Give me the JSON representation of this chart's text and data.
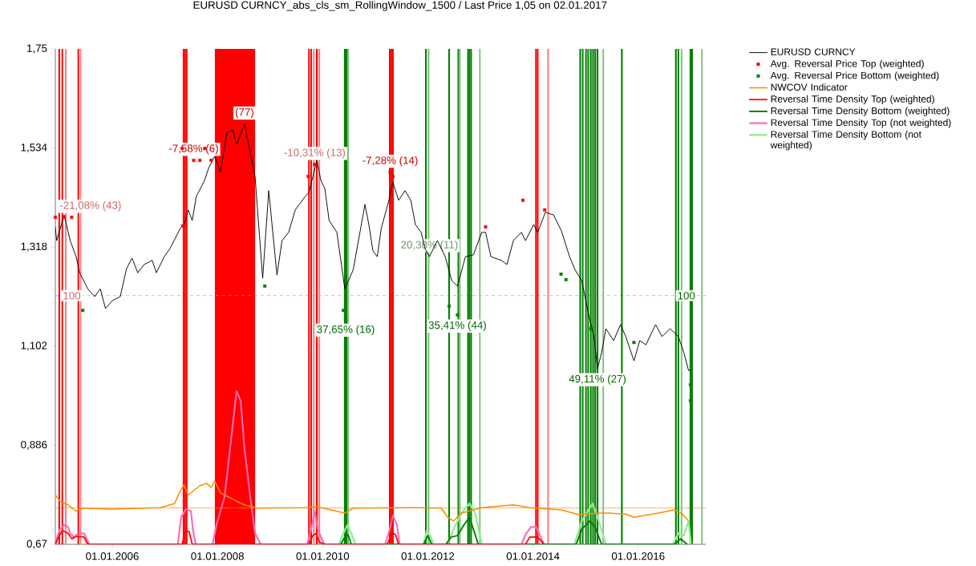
{
  "chart_data": {
    "type": "line",
    "title": "EURUSD  CURNCY_abs_cls_sm_RollingWindow_1500 / Last Price 1,05 on 02.01.2017",
    "xlim": [
      "2004-12-01",
      "2017-04-15"
    ],
    "xticks": [
      {
        "value": "2006-01-01",
        "label": "01.01.2006"
      },
      {
        "value": "2008-01-01",
        "label": "01.01.2008"
      },
      {
        "value": "2010-01-01",
        "label": "01.01.2010"
      },
      {
        "value": "2012-01-01",
        "label": "01.01.2012"
      },
      {
        "value": "2014-01-01",
        "label": "01.01.2014"
      },
      {
        "value": "2016-01-01",
        "label": "01.01.2016"
      }
    ],
    "ylim": [
      0.67,
      1.75
    ],
    "yticks": [
      {
        "value": 0.67,
        "label": "0,67"
      },
      {
        "value": 0.886,
        "label": "0,886"
      },
      {
        "value": 1.102,
        "label": "1,102"
      },
      {
        "value": 1.318,
        "label": "1,318"
      },
      {
        "value": 1.534,
        "label": "1,534"
      },
      {
        "value": 1.75,
        "label": "1,75"
      }
    ],
    "legend": "right",
    "series": [
      {
        "name": "EURUSD CURNCY",
        "color": "#000000",
        "x": [
          "2004-12-01",
          "2004-12-10",
          "2005-02-01",
          "2005-03-15",
          "2005-04-25",
          "2005-05-20",
          "2005-07-15",
          "2005-09-01",
          "2005-10-10",
          "2005-11-15",
          "2006-01-01",
          "2006-02-25",
          "2006-04-10",
          "2006-05-18",
          "2006-06-27",
          "2006-08-10",
          "2006-10-05",
          "2006-11-03",
          "2006-12-28",
          "2007-02-06",
          "2007-04-18",
          "2007-05-15",
          "2007-06-12",
          "2007-07-10",
          "2007-08-07",
          "2007-10-03",
          "2007-11-01",
          "2007-12-13",
          "2008-01-22",
          "2008-03-07",
          "2008-04-16",
          "2008-05-13",
          "2008-07-07",
          "2008-09-18",
          "2008-11-10",
          "2008-12-22",
          "2009-02-18",
          "2009-03-25",
          "2009-05-10",
          "2009-06-25",
          "2009-09-01",
          "2009-09-28",
          "2009-11-22",
          "2009-12-20",
          "2010-01-16",
          "2010-02-15",
          "2010-04-10",
          "2010-06-04",
          "2010-08-01",
          "2010-10-22",
          "2010-11-18",
          "2010-12-16",
          "2011-01-15",
          "2011-02-12",
          "2011-04-06",
          "2011-05-03",
          "2011-06-12",
          "2011-07-27",
          "2011-09-05",
          "2011-10-07",
          "2011-11-16",
          "2011-12-13",
          "2012-01-12",
          "2012-03-07",
          "2012-05-01",
          "2012-06-15",
          "2012-07-25",
          "2012-09-18",
          "2012-11-13",
          "2013-01-10",
          "2013-02-06",
          "2013-03-15",
          "2013-05-27",
          "2013-07-04",
          "2013-08-18",
          "2013-10-13",
          "2013-11-10",
          "2014-01-06",
          "2014-02-03",
          "2014-03-28",
          "2014-05-24",
          "2014-07-18",
          "2014-09-12",
          "2014-10-21",
          "2014-12-06",
          "2015-01-19",
          "2015-02-28",
          "2015-03-25",
          "2015-04-22",
          "2015-05-22",
          "2015-07-15",
          "2015-08-31",
          "2015-10-07",
          "2015-12-03",
          "2016-01-12",
          "2016-02-24",
          "2016-05-01",
          "2016-06-15",
          "2016-08-10",
          "2016-10-06",
          "2016-11-13",
          "2016-12-16",
          "2017-01-02"
        ],
        "values": [
          1.362,
          1.332,
          1.388,
          1.332,
          1.297,
          1.262,
          1.227,
          1.21,
          1.227,
          1.184,
          1.201,
          1.21,
          1.271,
          1.294,
          1.262,
          1.28,
          1.289,
          1.262,
          1.297,
          1.315,
          1.359,
          1.367,
          1.399,
          1.376,
          1.428,
          1.463,
          1.49,
          1.516,
          1.481,
          1.568,
          1.573,
          1.542,
          1.586,
          1.472,
          1.25,
          1.441,
          1.257,
          1.332,
          1.35,
          1.399,
          1.428,
          1.437,
          1.507,
          1.463,
          1.446,
          1.376,
          1.35,
          1.227,
          1.268,
          1.411,
          1.367,
          1.31,
          1.297,
          1.359,
          1.42,
          1.46,
          1.42,
          1.441,
          1.42,
          1.367,
          1.35,
          1.315,
          1.297,
          1.332,
          1.297,
          1.245,
          1.233,
          1.297,
          1.301,
          1.35,
          1.35,
          1.297,
          1.289,
          1.28,
          1.332,
          1.35,
          1.332,
          1.367,
          1.35,
          1.394,
          1.388,
          1.353,
          1.297,
          1.268,
          1.245,
          1.175,
          1.123,
          1.053,
          1.088,
          1.14,
          1.114,
          1.149,
          1.123,
          1.07,
          1.114,
          1.105,
          1.149,
          1.123,
          1.14,
          1.123,
          1.088,
          1.049,
          1.05
        ]
      },
      {
        "name": "Avg. Reversal Price Top (weighted)",
        "type": "scatter",
        "marker": "square",
        "color": "#ff0000",
        "x": [
          "2004-12-01",
          "2005-02-01",
          "2005-03-25",
          "2007-05-05",
          "2007-05-01",
          "2007-07-20",
          "2007-09-01",
          "2007-10-05",
          "2007-11-18",
          "2009-09-23",
          "2009-11-07",
          "2011-04-15",
          "2011-05-04",
          "2013-02-06",
          "2013-10-23",
          "2014-03-23"
        ],
        "values": [
          1.383,
          1.383,
          1.383,
          1.364,
          1.533,
          1.507,
          1.507,
          1.533,
          1.507,
          1.472,
          1.498,
          1.481,
          1.472,
          1.362,
          1.42,
          1.399
        ]
      },
      {
        "name": "Avg. Reversal Price Bottom (weighted)",
        "type": "scatter",
        "marker": "square",
        "color": "#008000",
        "x": [
          "2005-06-10",
          "2008-11-25",
          "2010-05-25",
          "2010-06-10",
          "2012-05-28",
          "2012-07-25",
          "2014-07-15",
          "2014-08-18",
          "2015-02-06",
          "2015-12-03",
          "2016-12-29",
          "2016-12-29"
        ],
        "values": [
          1.18,
          1.233,
          1.18,
          1.161,
          1.189,
          1.17,
          1.259,
          1.247,
          1.14,
          1.11,
          1.018,
          0.983
        ]
      },
      {
        "name": "NWCOV Indicator",
        "color": "#ff8c00",
        "x": [
          "2004-12-01",
          "2005-01-03",
          "2005-02-28",
          "2005-04-25",
          "2005-05-20",
          "2006-01-01",
          "2006-12-01",
          "2007-03-10",
          "2007-04-18",
          "2007-05-15",
          "2007-06-12",
          "2007-07-20",
          "2007-09-01",
          "2007-10-19",
          "2007-11-18",
          "2007-12-13",
          "2008-01-22",
          "2008-03-19",
          "2008-05-13",
          "2008-07-07",
          "2008-10-01",
          "2009-09-01",
          "2009-11-22",
          "2010-06-04",
          "2010-08-01",
          "2011-10-19",
          "2012-04-03",
          "2012-05-18",
          "2012-06-28",
          "2012-08-22",
          "2013-01-10",
          "2013-08-18",
          "2013-12-10",
          "2014-07-18",
          "2014-11-09",
          "2015-03-25",
          "2015-06-18",
          "2015-10-07",
          "2015-12-03",
          "2016-05-19",
          "2016-09-07",
          "2016-11-03",
          "2016-12-16"
        ],
        "values": [
          0.778,
          0.764,
          0.756,
          0.742,
          0.749,
          0.747,
          0.75,
          0.759,
          0.787,
          0.799,
          0.777,
          0.787,
          0.798,
          0.803,
          0.794,
          0.808,
          0.782,
          0.773,
          0.764,
          0.756,
          0.749,
          0.75,
          0.752,
          0.738,
          0.749,
          0.75,
          0.749,
          0.729,
          0.721,
          0.738,
          0.75,
          0.756,
          0.75,
          0.745,
          0.735,
          0.738,
          0.738,
          0.736,
          0.729,
          0.738,
          0.745,
          0.736,
          0.721
        ]
      },
      {
        "name": "Reversal Time Density Top (weighted)",
        "color": "#ff0000",
        "x": [
          "2004-12-01",
          "2004-12-17",
          "2005-01-19",
          "2005-02-28",
          "2005-03-26",
          "2005-04-25",
          "2005-06-19",
          "2005-07-15",
          "2007-05-01",
          "2007-05-21",
          "2007-06-18",
          "2007-07-10",
          "2009-09-28",
          "2009-10-25",
          "2009-11-16",
          "2009-12-09",
          "2010-01-13",
          "2011-03-25",
          "2011-04-28",
          "2011-05-22",
          "2011-06-12",
          "2013-11-10",
          "2013-12-10",
          "2014-02-03",
          "2014-03-19"
        ],
        "values": [
          0.67,
          0.682,
          0.7,
          0.694,
          0.682,
          0.687,
          0.686,
          0.67,
          0.67,
          0.698,
          0.698,
          0.67,
          0.67,
          0.689,
          0.694,
          0.675,
          0.67,
          0.67,
          0.696,
          0.691,
          0.67,
          0.67,
          0.686,
          0.686,
          0.67
        ]
      },
      {
        "name": "Reversal Time Density Bottom (weighted)",
        "color": "#008000",
        "x": [
          "2010-05-07",
          "2010-06-04",
          "2010-06-27",
          "2010-07-19",
          "2011-12-03",
          "2012-01-01",
          "2012-01-28",
          "2012-05-06",
          "2012-06-10",
          "2012-07-25",
          "2012-09-07",
          "2012-10-16",
          "2012-11-13",
          "2012-12-16",
          "2014-10-28",
          "2014-12-06",
          "2015-01-31",
          "2015-03-09",
          "2015-04-22",
          "2016-09-07",
          "2016-10-22",
          "2016-12-07"
        ],
        "values": [
          0.67,
          0.686,
          0.691,
          0.67,
          0.67,
          0.689,
          0.67,
          0.67,
          0.686,
          0.689,
          0.712,
          0.729,
          0.703,
          0.67,
          0.67,
          0.703,
          0.721,
          0.707,
          0.67,
          0.67,
          0.682,
          0.67
        ]
      },
      {
        "name": "Reversal Time Density Top (not weighted)",
        "color": "#ff69b4",
        "x": [
          "2004-12-01",
          "2004-12-17",
          "2005-01-03",
          "2005-02-01",
          "2005-02-28",
          "2005-03-15",
          "2005-04-07",
          "2005-05-10",
          "2005-06-19",
          "2005-07-15",
          "2005-07-27",
          "2007-04-01",
          "2007-04-24",
          "2007-05-27",
          "2007-07-01",
          "2007-07-16",
          "2007-08-03",
          "2007-11-28",
          "2007-12-25",
          "2008-02-19",
          "2008-04-16",
          "2008-05-13",
          "2008-06-10",
          "2008-07-07",
          "2008-08-16",
          "2008-09-18",
          "2008-10-28",
          "2009-09-16",
          "2009-10-13",
          "2009-11-07",
          "2009-11-28",
          "2010-01-01",
          "2010-01-16",
          "2011-03-10",
          "2011-04-12",
          "2011-05-04",
          "2011-06-01",
          "2011-06-19",
          "2013-10-13",
          "2013-11-10",
          "2013-12-19",
          "2014-01-22",
          "2014-02-19",
          "2014-03-19"
        ],
        "values": [
          0.67,
          0.689,
          0.703,
          0.712,
          0.708,
          0.694,
          0.686,
          0.694,
          0.694,
          0.677,
          0.67,
          0.67,
          0.729,
          0.747,
          0.742,
          0.7,
          0.67,
          0.67,
          0.712,
          0.773,
          0.93,
          1.004,
          0.983,
          0.878,
          0.773,
          0.694,
          0.67,
          0.67,
          0.703,
          0.743,
          0.703,
          0.677,
          0.67,
          0.67,
          0.703,
          0.733,
          0.712,
          0.67,
          0.67,
          0.691,
          0.708,
          0.708,
          0.689,
          0.67
        ]
      },
      {
        "name": "Reversal Time Density Bottom (not weighted)",
        "color": "#90ee90",
        "x": [
          "2010-04-25",
          "2010-05-25",
          "2010-06-22",
          "2010-07-19",
          "2010-08-16",
          "2011-12-03",
          "2011-12-25",
          "2012-01-22",
          "2012-02-09",
          "2012-05-18",
          "2012-06-28",
          "2012-08-22",
          "2012-10-16",
          "2012-11-25",
          "2013-01-10",
          "2014-10-16",
          "2014-12-06",
          "2015-02-18",
          "2015-03-25",
          "2015-05-22",
          "2016-08-28",
          "2016-10-06",
          "2016-11-13",
          "2016-12-16",
          "2017-01-02"
        ],
        "values": [
          0.67,
          0.694,
          0.712,
          0.694,
          0.67,
          0.67,
          0.7,
          0.686,
          0.67,
          0.67,
          0.703,
          0.738,
          0.759,
          0.738,
          0.67,
          0.67,
          0.721,
          0.759,
          0.729,
          0.67,
          0.67,
          0.694,
          0.689,
          0.721,
          0.67
        ]
      }
    ],
    "bands": [
      {
        "axis": "x",
        "from": "2007-12-13",
        "to": "2008-09-19",
        "color": "#ff0000"
      }
    ],
    "ref_lines": [
      {
        "axis": "y",
        "value": 1.212,
        "color": "#a0a0a0",
        "line_style": "dashed"
      },
      {
        "axis": "y",
        "value": 0.749,
        "color": "#ff8c00"
      },
      {
        "axis": "x",
        "value": "2004-12-28",
        "color": "#ff0000"
      },
      {
        "axis": "x",
        "value": "2005-01-19",
        "color": "#ff0000"
      },
      {
        "axis": "x",
        "value": "2005-02-12",
        "color": "#ff8080"
      },
      {
        "axis": "x",
        "value": "2005-05-10",
        "color": "#ff0000"
      },
      {
        "axis": "x",
        "value": "2005-05-27",
        "color": "#ff8080"
      },
      {
        "axis": "x",
        "value": "2007-05-10",
        "color": "#ff0000"
      },
      {
        "axis": "x",
        "value": "2007-05-21",
        "color": "#ff0000"
      },
      {
        "axis": "x",
        "value": "2007-06-01",
        "color": "#ff0000"
      },
      {
        "axis": "x",
        "value": "2009-09-28",
        "color": "#ff0000"
      },
      {
        "axis": "x",
        "value": "2009-10-13",
        "color": "#ff0000"
      },
      {
        "axis": "x",
        "value": "2009-11-01",
        "color": "#ff8080"
      },
      {
        "axis": "x",
        "value": "2009-11-22",
        "color": "#ff0000"
      },
      {
        "axis": "x",
        "value": "2009-12-09",
        "color": "#ff8080"
      },
      {
        "axis": "x",
        "value": "2011-04-12",
        "color": "#ff0000"
      },
      {
        "axis": "x",
        "value": "2011-04-24",
        "color": "#ff0000"
      },
      {
        "axis": "x",
        "value": "2011-05-04",
        "color": "#ff0000"
      },
      {
        "axis": "x",
        "value": "2010-06-04",
        "color": "#008000"
      },
      {
        "axis": "x",
        "value": "2010-06-16",
        "color": "#008000"
      },
      {
        "axis": "x",
        "value": "2010-06-27",
        "color": "#80c080"
      },
      {
        "axis": "x",
        "value": "2011-12-19",
        "color": "#008000"
      },
      {
        "axis": "x",
        "value": "2012-01-06",
        "color": "#80c080"
      },
      {
        "axis": "x",
        "value": "2012-05-28",
        "color": "#008000"
      },
      {
        "axis": "x",
        "value": "2012-07-31",
        "color": "#008000"
      },
      {
        "axis": "x",
        "value": "2012-08-10",
        "color": "#80c080"
      },
      {
        "axis": "x",
        "value": "2012-10-06",
        "color": "#008000"
      },
      {
        "axis": "x",
        "value": "2012-10-16",
        "color": "#008000"
      },
      {
        "axis": "x",
        "value": "2012-10-28",
        "color": "#008000"
      },
      {
        "axis": "x",
        "value": "2012-12-28",
        "color": "#80c080"
      },
      {
        "axis": "x",
        "value": "2014-01-22",
        "color": "#ff0000"
      },
      {
        "axis": "x",
        "value": "2014-02-03",
        "color": "#ff0000"
      },
      {
        "axis": "x",
        "value": "2014-04-16",
        "color": "#ff8080"
      },
      {
        "axis": "x",
        "value": "2014-11-25",
        "color": "#008000"
      },
      {
        "axis": "x",
        "value": "2014-12-12",
        "color": "#008000"
      },
      {
        "axis": "x",
        "value": "2015-01-03",
        "color": "#008000"
      },
      {
        "axis": "x",
        "value": "2015-01-19",
        "color": "#008000"
      },
      {
        "axis": "x",
        "value": "2015-02-06",
        "color": "#008000"
      },
      {
        "axis": "x",
        "value": "2015-02-22",
        "color": "#008000"
      },
      {
        "axis": "x",
        "value": "2015-03-09",
        "color": "#008000"
      },
      {
        "axis": "x",
        "value": "2015-03-25",
        "color": "#008000"
      },
      {
        "axis": "x",
        "value": "2015-05-04",
        "color": "#80c080"
      },
      {
        "axis": "x",
        "value": "2015-09-10",
        "color": "#008000"
      },
      {
        "axis": "x",
        "value": "2016-09-19",
        "color": "#008000"
      },
      {
        "axis": "x",
        "value": "2016-10-06",
        "color": "#008000"
      },
      {
        "axis": "x",
        "value": "2016-10-28",
        "color": "#80c080"
      },
      {
        "axis": "x",
        "value": "2016-12-29",
        "color": "#008000"
      },
      {
        "axis": "x",
        "value": "2017-01-10",
        "color": "#008000"
      },
      {
        "axis": "x",
        "value": "2017-03-20",
        "color": "#80c080"
      }
    ],
    "annotations": [
      {
        "text": "-21,08% (43)",
        "x": "2005-02-01",
        "y": 1.383
      },
      {
        "text": "-7,58% (6)",
        "x": "2007-07-20",
        "y": 1.507
      },
      {
        "text": "(77)",
        "x": "2008-07-07",
        "y": 1.586
      },
      {
        "text": "-10,31% (13)",
        "x": "2009-11-07",
        "y": 1.498
      },
      {
        "text": "-7,28% (14)",
        "x": "2011-04-15",
        "y": 1.481
      },
      {
        "text": "20,38% (11)",
        "x": "2012-01-12",
        "y": 1.297
      },
      {
        "text": "37,65% (16)",
        "x": "2010-06-10",
        "y": 1.161
      },
      {
        "text": "35,41% (44)",
        "x": "2012-07-25",
        "y": 1.17
      },
      {
        "text": "49,11% (27)",
        "x": "2015-03-25",
        "y": 1.053
      },
      {
        "text": "100",
        "x": "2005-03-26",
        "y": 1.212
      },
      {
        "text": "100",
        "x": "2016-11-30",
        "y": 1.212
      }
    ]
  }
}
